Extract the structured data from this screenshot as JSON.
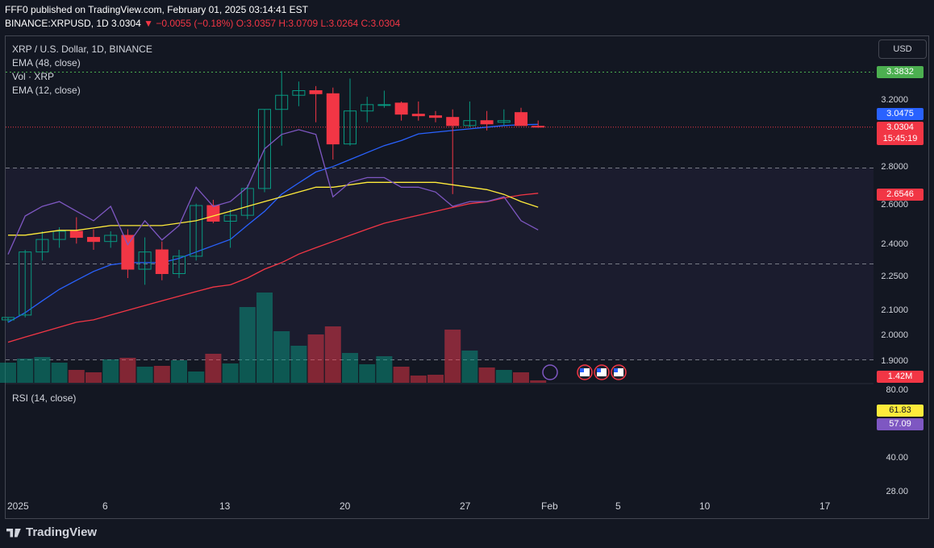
{
  "header": {
    "published": "FFF0 published on TradingView.com, February 01, 2025 03:14:41 EST",
    "symbol": "BINANCE:XRPUSD, 1D",
    "last": "3.0304",
    "change": "▼ −0.0055 (−0.18%)",
    "ohlc": "O:3.0357 H:3.0709 L:3.0264 C:3.0304"
  },
  "legend": {
    "title": "XRP / U.S. Dollar, 1D, BINANCE",
    "ema48": "EMA (48, close)",
    "vol": "Vol · XRP",
    "ema12": "EMA (12, close)",
    "rsi": "RSI (14, close)"
  },
  "currency_button": "USD",
  "price_labels": {
    "high_line": "3.3832",
    "ema12": "3.0475",
    "last": "3.0304",
    "countdown": "15:45:19",
    "ema48": "2.6546",
    "volume": "1.42M",
    "rsi_ma": "61.83",
    "rsi": "57.09"
  },
  "axis_ticks": [
    "3.2000",
    "2.8000",
    "2.6000",
    "2.4000",
    "2.2500",
    "2.1000",
    "2.0000",
    "1.9000"
  ],
  "rsi_ticks": [
    "80.00",
    "40.00",
    "28.00"
  ],
  "x_ticks": [
    "2025",
    "6",
    "13",
    "20",
    "27",
    "Feb",
    "5",
    "10",
    "17"
  ],
  "footer": "TradingView",
  "colors": {
    "up": "#089981",
    "down": "#f23645",
    "ema12": "#2962ff",
    "ema48": "#f23645",
    "rsi": "#7e57c2",
    "rsi_ma": "#ffeb3b",
    "bg": "#131722"
  },
  "chart_data": {
    "type": "candlestick",
    "symbol": "XRPUSD",
    "interval": "1D",
    "ylim": [
      1.82,
      3.55
    ],
    "scale": "log",
    "dates": [
      "Jan 1",
      "Jan 2",
      "Jan 3",
      "Jan 4",
      "Jan 5",
      "Jan 6",
      "Jan 7",
      "Jan 8",
      "Jan 9",
      "Jan 10",
      "Jan 11",
      "Jan 12",
      "Jan 13",
      "Jan 14",
      "Jan 15",
      "Jan 16",
      "Jan 17",
      "Jan 18",
      "Jan 19",
      "Jan 20",
      "Jan 21",
      "Jan 22",
      "Jan 23",
      "Jan 24",
      "Jan 25",
      "Jan 26",
      "Jan 27",
      "Jan 28",
      "Jan 29",
      "Jan 30",
      "Jan 31",
      "Feb 1"
    ],
    "candles": [
      [
        2.06,
        2.07,
        2.05,
        2.07
      ],
      [
        2.08,
        2.37,
        2.07,
        2.36
      ],
      [
        2.36,
        2.46,
        2.32,
        2.42
      ],
      [
        2.42,
        2.48,
        2.38,
        2.46
      ],
      [
        2.46,
        2.53,
        2.4,
        2.43
      ],
      [
        2.43,
        2.47,
        2.37,
        2.41
      ],
      [
        2.41,
        2.46,
        2.38,
        2.44
      ],
      [
        2.44,
        2.47,
        2.24,
        2.28
      ],
      [
        2.28,
        2.43,
        2.21,
        2.36
      ],
      [
        2.37,
        2.41,
        2.23,
        2.26
      ],
      [
        2.26,
        2.37,
        2.24,
        2.34
      ],
      [
        2.34,
        2.6,
        2.32,
        2.59
      ],
      [
        2.59,
        2.62,
        2.5,
        2.51
      ],
      [
        2.51,
        2.57,
        2.38,
        2.54
      ],
      [
        2.54,
        2.7,
        2.52,
        2.68
      ],
      [
        2.68,
        3.14,
        2.66,
        3.14
      ],
      [
        3.14,
        3.39,
        2.92,
        3.23
      ],
      [
        3.23,
        3.32,
        3.16,
        3.26
      ],
      [
        3.26,
        3.29,
        3.06,
        3.24
      ],
      [
        3.24,
        3.28,
        2.84,
        2.93
      ],
      [
        2.93,
        3.34,
        2.92,
        3.13
      ],
      [
        3.13,
        3.22,
        3.06,
        3.17
      ],
      [
        3.17,
        3.26,
        3.15,
        3.17
      ],
      [
        3.18,
        3.19,
        3.07,
        3.11
      ],
      [
        3.11,
        3.19,
        3.07,
        3.1
      ],
      [
        3.1,
        3.13,
        3.06,
        3.09
      ],
      [
        3.09,
        3.14,
        2.65,
        3.04
      ],
      [
        3.04,
        3.19,
        3.03,
        3.07
      ],
      [
        3.07,
        3.13,
        3.01,
        3.05
      ],
      [
        3.06,
        3.14,
        3.04,
        3.07
      ],
      [
        3.12,
        3.15,
        3.04,
        3.04
      ],
      [
        3.0357,
        3.0709,
        3.0264,
        3.0304
      ]
    ],
    "volume": [
      25,
      30,
      32,
      25,
      16,
      13,
      29,
      31,
      20,
      21,
      28,
      14,
      36,
      24,
      94,
      112,
      64,
      46,
      60,
      70,
      37,
      23,
      33,
      20,
      9,
      10,
      66,
      40,
      19,
      16,
      13,
      3
    ],
    "ema12": [
      2.05,
      2.09,
      2.14,
      2.19,
      2.23,
      2.27,
      2.3,
      2.31,
      2.31,
      2.31,
      2.33,
      2.36,
      2.39,
      2.42,
      2.49,
      2.56,
      2.65,
      2.71,
      2.77,
      2.8,
      2.84,
      2.88,
      2.92,
      2.95,
      2.99,
      3.0,
      3.01,
      3.02,
      3.03,
      3.04,
      3.045,
      3.0475
    ],
    "ema48": [
      1.97,
      1.99,
      2.01,
      2.03,
      2.05,
      2.06,
      2.08,
      2.1,
      2.12,
      2.14,
      2.16,
      2.18,
      2.2,
      2.21,
      2.24,
      2.28,
      2.31,
      2.35,
      2.38,
      2.41,
      2.44,
      2.47,
      2.5,
      2.52,
      2.54,
      2.56,
      2.58,
      2.6,
      2.61,
      2.63,
      2.645,
      2.6546
    ],
    "rsi": [
      52,
      60,
      62,
      63,
      61,
      59,
      62,
      54,
      59,
      55,
      58,
      66,
      62,
      63,
      66,
      74,
      77,
      78,
      77,
      64,
      67,
      68,
      68,
      66,
      66,
      65,
      62,
      63,
      63,
      64,
      59,
      57.09
    ],
    "rsi_ma": [
      56,
      56,
      56.5,
      57,
      57,
      57.5,
      58,
      58,
      58,
      58,
      58.5,
      59,
      60,
      61,
      62,
      63,
      64,
      65,
      66,
      66,
      66.5,
      67,
      67,
      67,
      67,
      67,
      66.5,
      66,
      65.5,
      64.5,
      63,
      61.83
    ],
    "rsi_levels": [
      70,
      50,
      30
    ]
  }
}
